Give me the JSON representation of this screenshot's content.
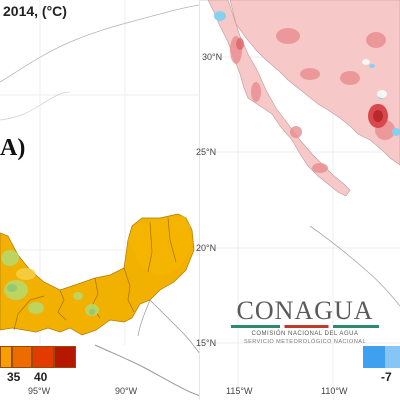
{
  "left_panel": {
    "title": "2014, (°C)",
    "panel_letter": "A)",
    "lon_labels": [
      "95°W",
      "90°W"
    ],
    "legend": {
      "colors": [
        "#f5a000",
        "#ec6c00",
        "#e23a00",
        "#b41800"
      ],
      "labels": [
        "35",
        "40"
      ]
    },
    "region_fill": "#f2b000",
    "accent_fill": "#b8d86a"
  },
  "right_panel": {
    "lat_labels": [
      "30°N",
      "25°N",
      "20°N",
      "15°N"
    ],
    "lon_labels": [
      "115°W",
      "110°W"
    ],
    "map_fill": "#f6c8c8",
    "anomaly_dark": "#d9484c",
    "anomaly_cold": "#86d0f0",
    "legend": {
      "colors": [
        "#3fa0f0",
        "#86c6f6"
      ],
      "label": "-7"
    },
    "logo": {
      "name": "CONAGUA",
      "subtitle_1": "COMISIÓN NACIONAL DEL AGUA",
      "subtitle_2": "SERVICIO METEOROLÓGICO NACIONAL"
    }
  }
}
